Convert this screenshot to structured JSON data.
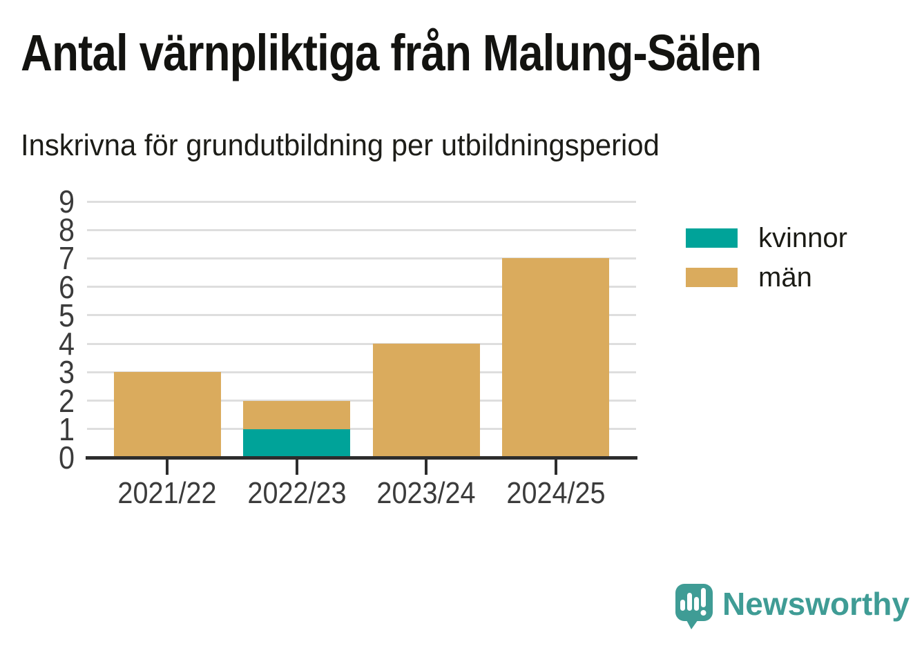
{
  "header": {
    "title": "Antal värnpliktiga från Malung-Sälen",
    "subtitle": "Inskrivna för grundutbildning per utbildningsperiod"
  },
  "chart_data": {
    "type": "bar",
    "stacked": true,
    "title": "Antal värnpliktiga från Malung-Sälen",
    "subtitle": "Inskrivna för grundutbildning per utbildningsperiod",
    "categories": [
      "2021/22",
      "2022/23",
      "2023/24",
      "2024/25"
    ],
    "series": [
      {
        "name": "kvinnor",
        "color": "#00a399",
        "values": [
          0,
          1,
          0,
          0
        ]
      },
      {
        "name": "män",
        "color": "#daab5d",
        "values": [
          3,
          1,
          4,
          7
        ]
      }
    ],
    "totals": [
      3,
      2,
      4,
      7
    ],
    "xlabel": "",
    "ylabel": "",
    "ylim": [
      0,
      9
    ],
    "ytick_interval": 1,
    "yticks": [
      0,
      1,
      2,
      3,
      4,
      5,
      6,
      7,
      8,
      9
    ],
    "grid": "horizontal",
    "legend_position": "right"
  },
  "footer": {
    "brand": "Newsworthy",
    "brand_color": "#3f9c95"
  },
  "palette": {
    "kvinnor": "#00a399",
    "man": "#daab5d",
    "brand_teal": "#3f9c95",
    "axis_line": "#2d2d2d",
    "gridline": "#dedede",
    "tick_text": "#3b3b3b",
    "background": "#ffffff"
  }
}
